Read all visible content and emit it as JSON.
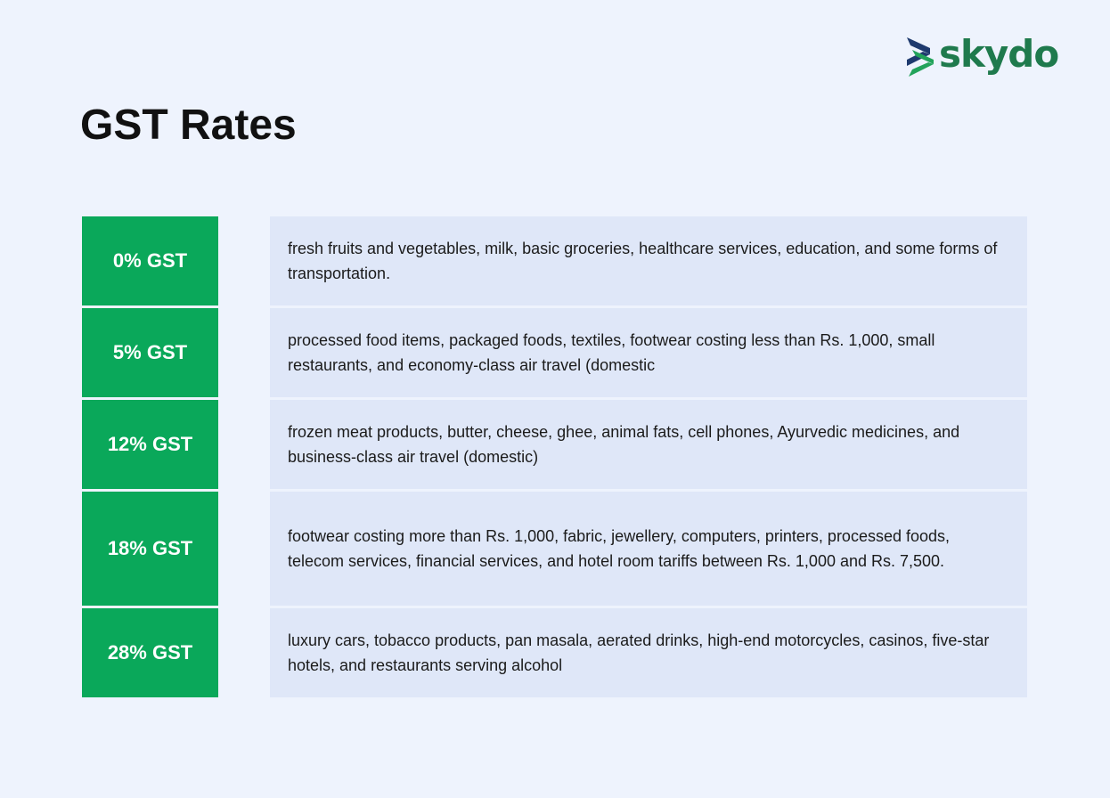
{
  "brand": {
    "logo_text": "skydo",
    "colors": {
      "logo_text": "#1f7a4d",
      "logo_mark_dark": "#1e3a6e",
      "logo_mark_light": "#22a35a"
    }
  },
  "title": "GST Rates",
  "colors": {
    "background": "#eef3fd",
    "rate_cell": "#0aa85a",
    "description_cell": "#dfe7f8"
  },
  "rates": [
    {
      "label": "0% GST",
      "description": "fresh fruits and vegetables, milk, basic groceries, healthcare services, education, and some forms of transportation."
    },
    {
      "label": "5% GST",
      "description": "processed food items, packaged foods, textiles, footwear costing less than Rs. 1,000, small restaurants, and economy-class air travel (domestic"
    },
    {
      "label": "12% GST",
      "description": "frozen meat products, butter, cheese, ghee, animal fats, cell phones, Ayurvedic medicines, and business-class air travel (domestic)"
    },
    {
      "label": "18% GST",
      "description": "footwear costing more than Rs. 1,000, fabric, jewellery, computers, printers, processed foods, telecom services, financial services, and hotel room tariffs between Rs. 1,000 and Rs. 7,500."
    },
    {
      "label": "28% GST",
      "description": "luxury cars, tobacco products, pan masala, aerated drinks, high-end motorcycles, casinos, five-star hotels, and restaurants serving alcohol"
    }
  ]
}
